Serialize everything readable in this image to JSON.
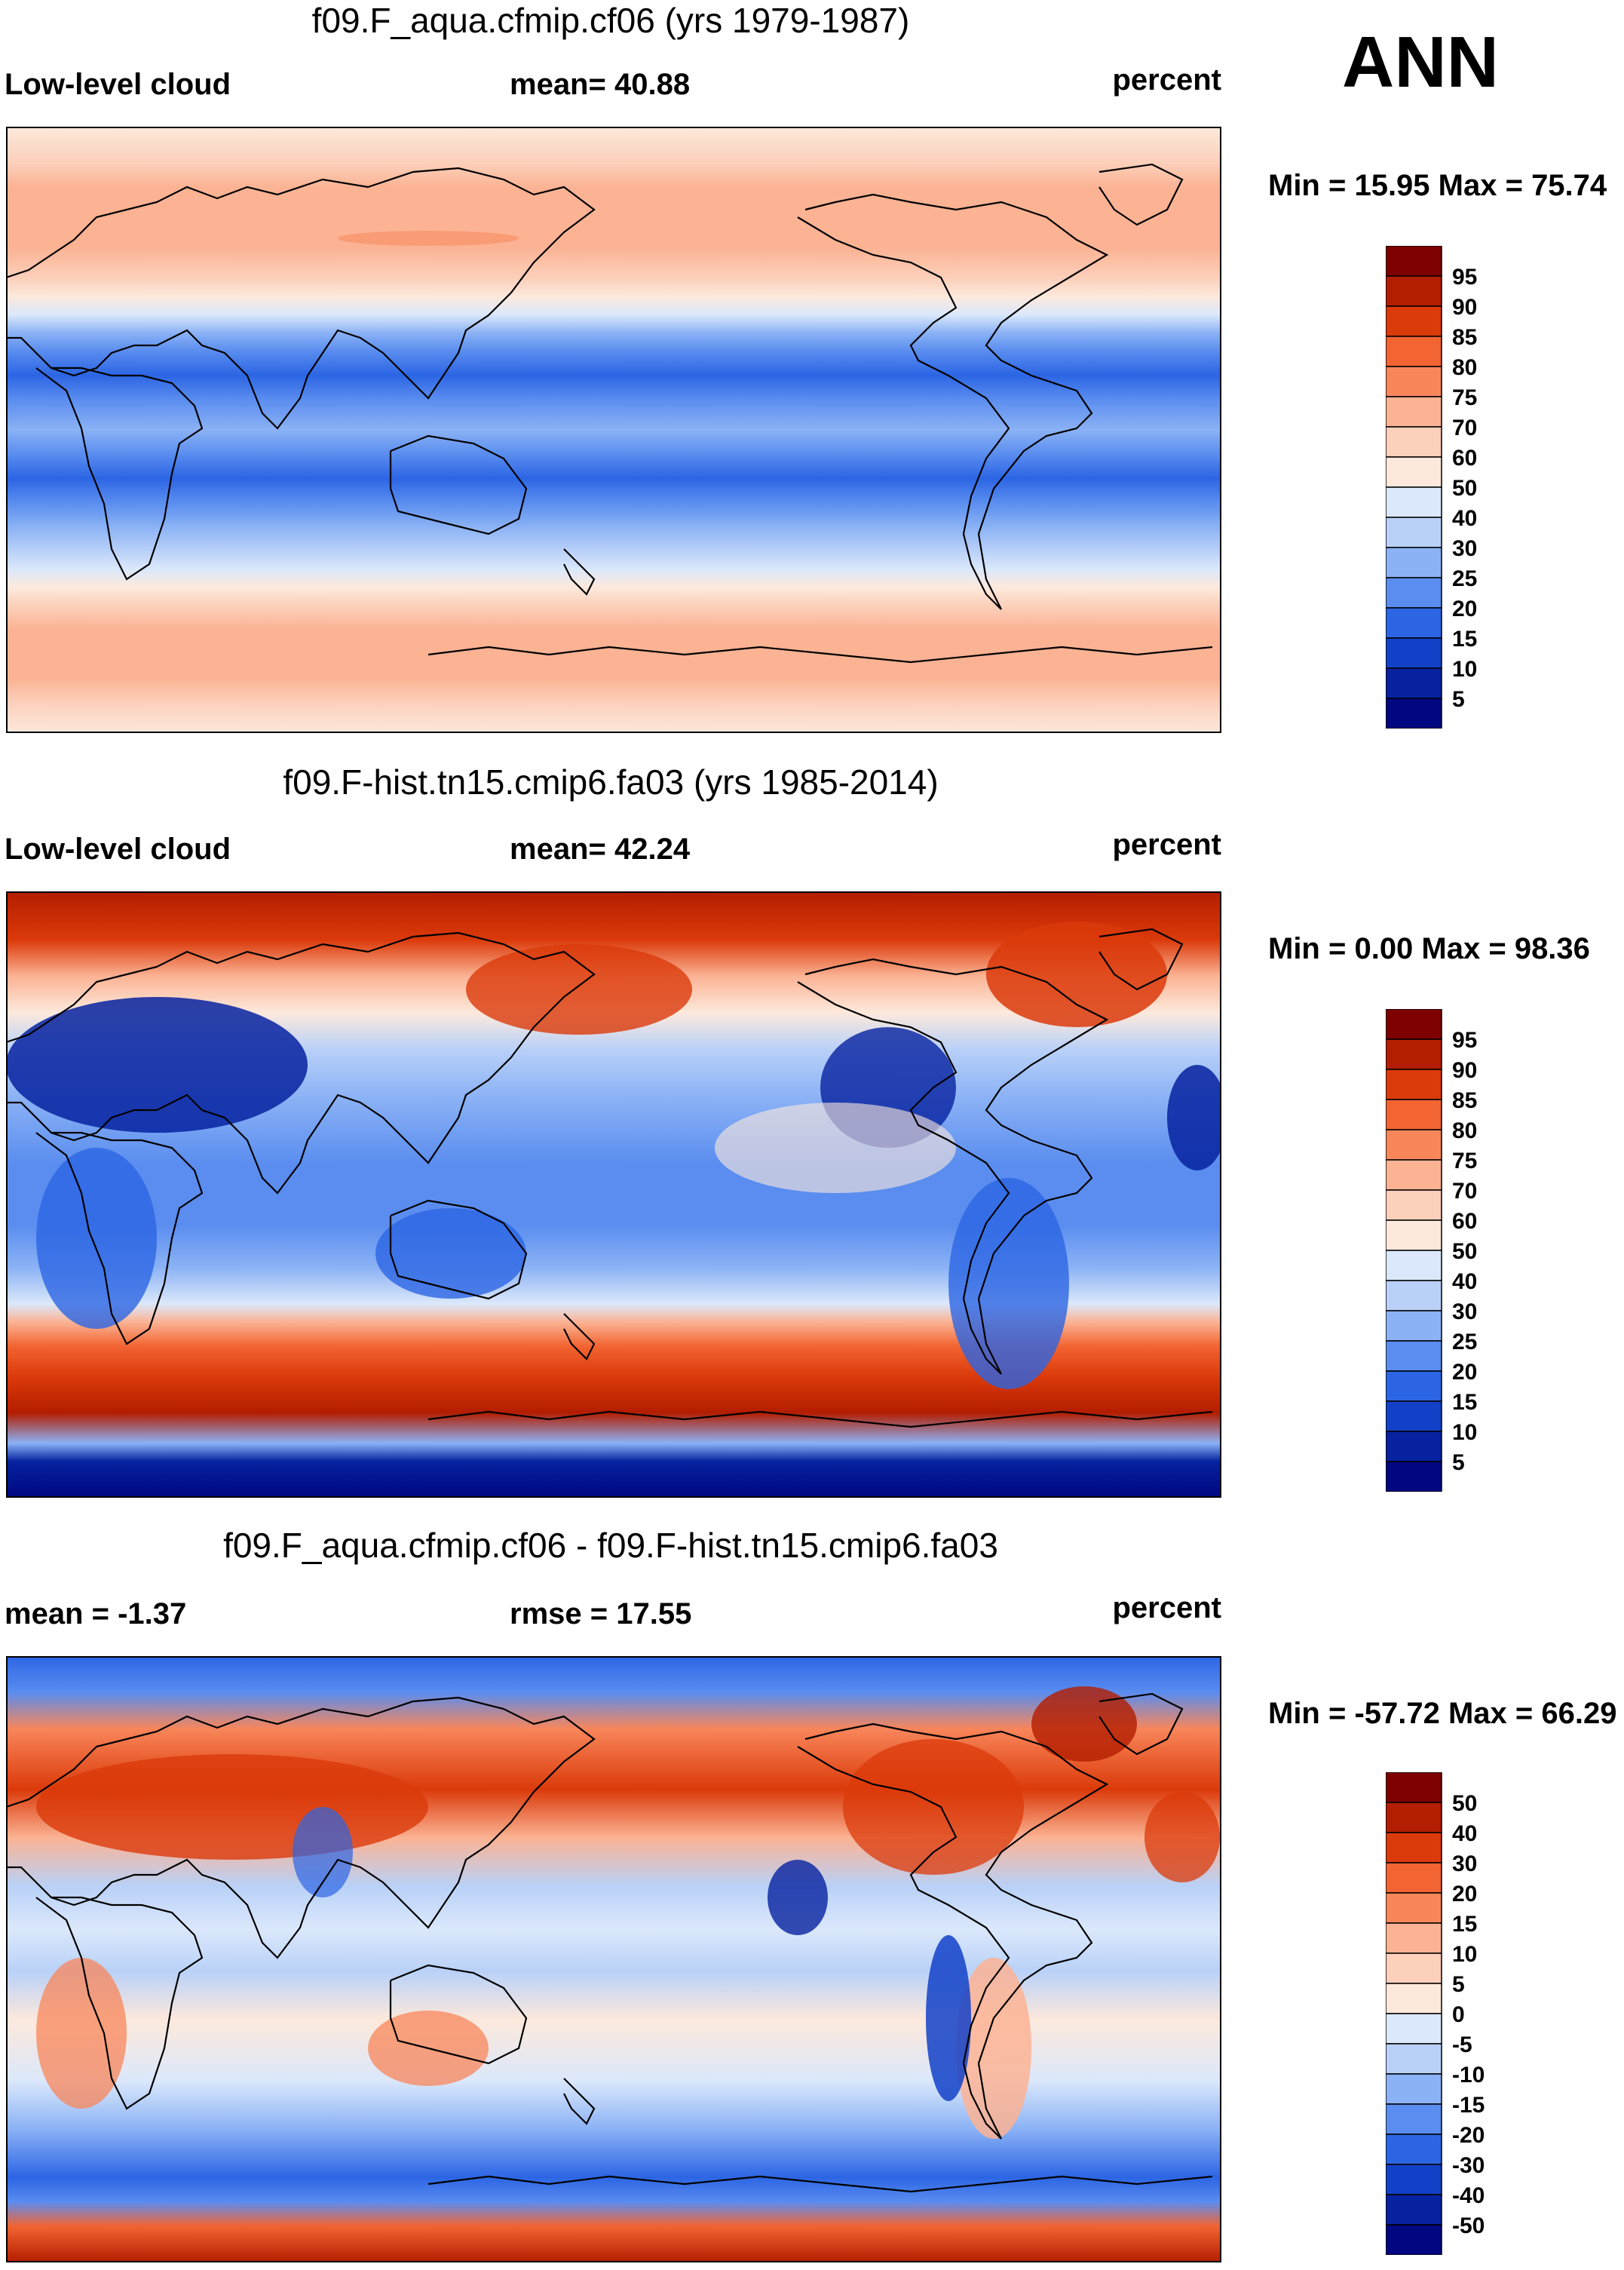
{
  "season": "ANN",
  "panels": [
    {
      "title": "f09.F_aqua.cfmip.cf06 (yrs 1979-1987)",
      "left_label": "Low-level cloud",
      "center_label": "mean=  40.88",
      "right_label": "percent",
      "minmax": "Min =  15.95 Max =  75.74",
      "colorbar_labels": [
        "95",
        "90",
        "85",
        "80",
        "75",
        "70",
        "60",
        "50",
        "40",
        "30",
        "25",
        "20",
        "15",
        "10",
        "5"
      ]
    },
    {
      "title": "f09.F-hist.tn15.cmip6.fa03 (yrs 1985-2014)",
      "left_label": "Low-level cloud",
      "center_label": "mean=  42.24",
      "right_label": "percent",
      "minmax": "Min =   0.00 Max =  98.36",
      "colorbar_labels": [
        "95",
        "90",
        "85",
        "80",
        "75",
        "70",
        "60",
        "50",
        "40",
        "30",
        "25",
        "20",
        "15",
        "10",
        "5"
      ]
    },
    {
      "title": "f09.F_aqua.cfmip.cf06 - f09.F-hist.tn15.cmip6.fa03",
      "left_label": "mean =  -1.37",
      "center_label": "rmse =  17.55",
      "right_label": "percent",
      "minmax": "Min = -57.72 Max =  66.29",
      "colorbar_labels": [
        "50",
        "40",
        "30",
        "20",
        "15",
        "10",
        "5",
        "0",
        "-5",
        "-10",
        "-15",
        "-20",
        "-30",
        "-40",
        "-50"
      ]
    }
  ],
  "colorbar_colors": [
    "#7f0000",
    "#b31d00",
    "#db3a0a",
    "#f26432",
    "#f8865a",
    "#fbb394",
    "#fcd0bb",
    "#fde9dc",
    "#dbe8fb",
    "#b9d1f8",
    "#8bb2f5",
    "#5a8def",
    "#2c65e4",
    "#1241c8",
    "#0622a0",
    "#000780"
  ],
  "chart_data": [
    {
      "type": "heatmap",
      "title": "f09.F_aqua.cfmip.cf06 (yrs 1979-1987)",
      "variable": "Low-level cloud",
      "units": "percent",
      "mean": 40.88,
      "min": 15.95,
      "max": 75.74,
      "contour_levels": [
        5,
        10,
        15,
        20,
        25,
        30,
        40,
        50,
        60,
        70,
        75,
        80,
        85,
        90,
        95
      ],
      "zonal_band_values_north_to_south": [
        62,
        72,
        75,
        65,
        48,
        36,
        24,
        18,
        22,
        30,
        24,
        18,
        26,
        34,
        48,
        62,
        72,
        75,
        70,
        60
      ]
    },
    {
      "type": "heatmap",
      "title": "f09.F-hist.tn15.cmip6.fa03 (yrs 1985-2014)",
      "variable": "Low-level cloud",
      "units": "percent",
      "mean": 42.24,
      "min": 0.0,
      "max": 98.36,
      "contour_levels": [
        5,
        10,
        15,
        20,
        25,
        30,
        40,
        50,
        60,
        70,
        75,
        80,
        85,
        90,
        95
      ]
    },
    {
      "type": "heatmap",
      "title": "f09.F_aqua.cfmip.cf06 - f09.F-hist.tn15.cmip6.fa03",
      "units": "percent",
      "mean": -1.37,
      "rmse": 17.55,
      "min": -57.72,
      "max": 66.29,
      "contour_levels": [
        -50,
        -40,
        -30,
        -20,
        -15,
        -10,
        -5,
        0,
        5,
        10,
        15,
        20,
        30,
        40,
        50
      ]
    }
  ]
}
